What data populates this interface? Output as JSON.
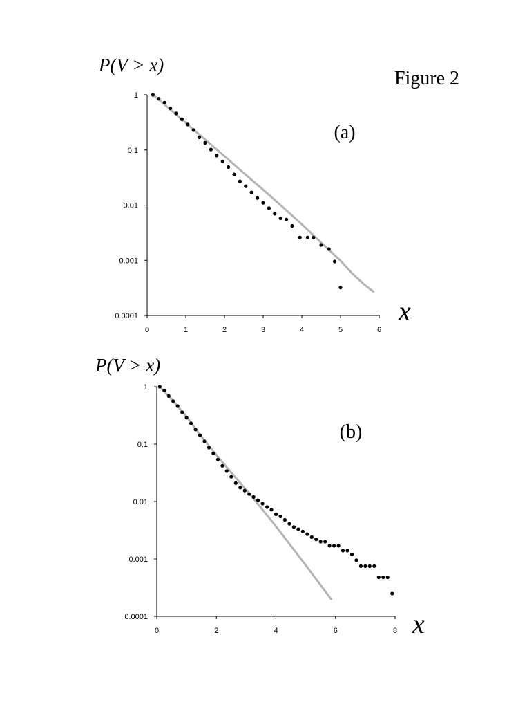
{
  "figure_label": "Figure 2",
  "chart_data": [
    {
      "type": "scatter",
      "panel_label": "(a)",
      "ylabel": "P(V > x)",
      "xlabel": "x",
      "y_scale": "log",
      "xlim": [
        0,
        6
      ],
      "ylim": [
        0.0001,
        1
      ],
      "x_ticks": [
        "0",
        "1",
        "2",
        "3",
        "4",
        "5",
        "6"
      ],
      "y_ticks": [
        "1",
        "0.1",
        "0.01",
        "0.001",
        "0.0001"
      ],
      "grid": false,
      "series": [
        {
          "kind": "points",
          "color": "#000000",
          "points": [
            [
              0.15,
              1.0
            ],
            [
              0.3,
              0.85
            ],
            [
              0.45,
              0.72
            ],
            [
              0.6,
              0.57
            ],
            [
              0.75,
              0.46
            ],
            [
              0.9,
              0.36
            ],
            [
              1.05,
              0.29
            ],
            [
              1.2,
              0.23
            ],
            [
              1.35,
              0.17
            ],
            [
              1.5,
              0.135
            ],
            [
              1.65,
              0.102
            ],
            [
              1.8,
              0.079
            ],
            [
              1.95,
              0.062
            ],
            [
              2.1,
              0.049
            ],
            [
              2.25,
              0.036
            ],
            [
              2.4,
              0.027
            ],
            [
              2.55,
              0.022
            ],
            [
              2.7,
              0.017
            ],
            [
              2.85,
              0.0135
            ],
            [
              3.0,
              0.011
            ],
            [
              3.15,
              0.0088
            ],
            [
              3.3,
              0.007
            ],
            [
              3.45,
              0.0058
            ],
            [
              3.6,
              0.0055
            ],
            [
              3.75,
              0.0042
            ],
            [
              3.95,
              0.0026
            ],
            [
              4.15,
              0.0026
            ],
            [
              4.3,
              0.0026
            ],
            [
              4.5,
              0.0019
            ],
            [
              4.7,
              0.0016
            ],
            [
              4.85,
              0.00095
            ],
            [
              5.0,
              0.00032
            ]
          ]
        },
        {
          "kind": "line",
          "color": "#b4b4b4",
          "points": [
            [
              0.15,
              1.0
            ],
            [
              0.5,
              0.62
            ],
            [
              1.0,
              0.31
            ],
            [
              1.5,
              0.155
            ],
            [
              2.0,
              0.077
            ],
            [
              2.5,
              0.038
            ],
            [
              3.0,
              0.019
            ],
            [
              3.5,
              0.0093
            ],
            [
              4.0,
              0.0045
            ],
            [
              4.5,
              0.0021
            ],
            [
              5.0,
              0.00098
            ],
            [
              5.3,
              0.00058
            ],
            [
              5.6,
              0.00037
            ],
            [
              5.85,
              0.00027
            ]
          ]
        }
      ]
    },
    {
      "type": "scatter",
      "panel_label": "(b)",
      "ylabel": "P(V > x)",
      "xlabel": "x",
      "y_scale": "log",
      "xlim": [
        0,
        8
      ],
      "ylim": [
        0.0001,
        1
      ],
      "x_ticks": [
        "0",
        "2",
        "4",
        "6",
        "8"
      ],
      "y_ticks": [
        "1",
        "0.1",
        "0.01",
        "0.001",
        "0.0001"
      ],
      "grid": false,
      "series": [
        {
          "kind": "points",
          "color": "#000000",
          "points": [
            [
              0.1,
              1.0
            ],
            [
              0.25,
              0.86
            ],
            [
              0.4,
              0.69
            ],
            [
              0.55,
              0.56
            ],
            [
              0.7,
              0.46
            ],
            [
              0.85,
              0.36
            ],
            [
              1.0,
              0.29
            ],
            [
              1.15,
              0.23
            ],
            [
              1.3,
              0.18
            ],
            [
              1.45,
              0.143
            ],
            [
              1.6,
              0.112
            ],
            [
              1.75,
              0.087
            ],
            [
              1.9,
              0.069
            ],
            [
              2.05,
              0.054
            ],
            [
              2.2,
              0.042
            ],
            [
              2.35,
              0.034
            ],
            [
              2.5,
              0.027
            ],
            [
              2.65,
              0.021
            ],
            [
              2.8,
              0.0175
            ],
            [
              2.95,
              0.0155
            ],
            [
              3.1,
              0.0135
            ],
            [
              3.25,
              0.012
            ],
            [
              3.4,
              0.0105
            ],
            [
              3.55,
              0.0092
            ],
            [
              3.7,
              0.008
            ],
            [
              3.85,
              0.0072
            ],
            [
              4.0,
              0.006
            ],
            [
              4.15,
              0.0055
            ],
            [
              4.3,
              0.0048
            ],
            [
              4.45,
              0.0041
            ],
            [
              4.6,
              0.0036
            ],
            [
              4.75,
              0.0033
            ],
            [
              4.9,
              0.003
            ],
            [
              5.05,
              0.0027
            ],
            [
              5.2,
              0.0024
            ],
            [
              5.35,
              0.0022
            ],
            [
              5.5,
              0.002
            ],
            [
              5.65,
              0.002
            ],
            [
              5.8,
              0.0017
            ],
            [
              5.95,
              0.0017
            ],
            [
              6.1,
              0.0017
            ],
            [
              6.25,
              0.0014
            ],
            [
              6.4,
              0.0014
            ],
            [
              6.55,
              0.0012
            ],
            [
              6.7,
              0.00095
            ],
            [
              6.85,
              0.00075
            ],
            [
              7.0,
              0.00075
            ],
            [
              7.15,
              0.00075
            ],
            [
              7.3,
              0.00075
            ],
            [
              7.45,
              0.00048
            ],
            [
              7.6,
              0.00048
            ],
            [
              7.75,
              0.00048
            ],
            [
              7.9,
              0.00025
            ]
          ]
        },
        {
          "kind": "line",
          "color": "#b4b4b4",
          "points": [
            [
              0.1,
              1.0
            ],
            [
              0.5,
              0.6
            ],
            [
              1.0,
              0.3
            ],
            [
              1.5,
              0.135
            ],
            [
              2.0,
              0.065
            ],
            [
              2.5,
              0.032
            ],
            [
              3.0,
              0.016
            ],
            [
              3.5,
              0.0078
            ],
            [
              4.0,
              0.0037
            ],
            [
              4.5,
              0.0017
            ],
            [
              5.0,
              0.00078
            ],
            [
              5.5,
              0.00035
            ],
            [
              5.85,
              0.0002
            ]
          ]
        }
      ]
    }
  ]
}
